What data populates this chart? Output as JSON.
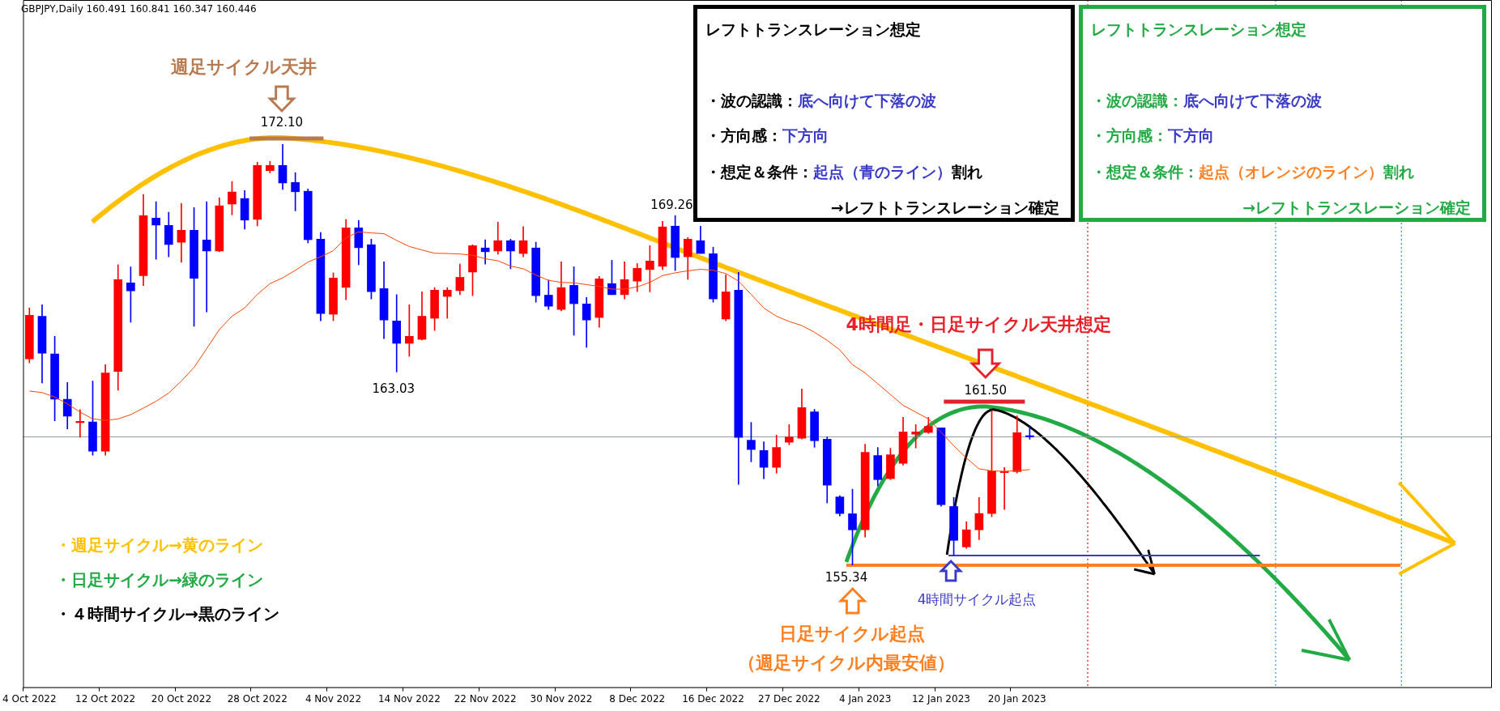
{
  "chart_data": {
    "type": "candlestick",
    "title": "GBPJPY,Daily  160.491 160.841 160.347 160.446",
    "categories": [
      "4 Oct 2022",
      null,
      null,
      null,
      null,
      null,
      "12 Oct 2022",
      null,
      null,
      null,
      null,
      null,
      "20 Oct 2022",
      null,
      null,
      null,
      null,
      null,
      "28 Oct 2022",
      null,
      null,
      null,
      null,
      null,
      "4 Nov 2022",
      null,
      null,
      null,
      null,
      null,
      "14 Nov 2022",
      null,
      null,
      null,
      null,
      null,
      "22 Nov 2022",
      null,
      null,
      null,
      null,
      null,
      "30 Nov 2022",
      null,
      null,
      null,
      null,
      null,
      "8 Dec 2022",
      null,
      null,
      null,
      null,
      null,
      "16 Dec 2022",
      null,
      null,
      null,
      null,
      null,
      "27 Dec 2022",
      null,
      null,
      null,
      null,
      null,
      "4 Jan 2023",
      null,
      null,
      null,
      null,
      null,
      "12 Jan 2023",
      null,
      null,
      null,
      null,
      null,
      "20 Jan 2023",
      null,
      null,
      null,
      null,
      null,
      null,
      null,
      null,
      null,
      null,
      null,
      null,
      null,
      null,
      null,
      null,
      null,
      null,
      null,
      null,
      null,
      null,
      null,
      null,
      null,
      null,
      null,
      null,
      null,
      null,
      null,
      null,
      null,
      null,
      null,
      null,
      null
    ],
    "ohlc": [
      [
        163.55,
        165.58,
        163.39,
        165.29
      ],
      [
        165.25,
        165.71,
        162.59,
        163.78
      ],
      [
        163.75,
        164.45,
        161.08,
        161.95
      ],
      [
        161.94,
        162.61,
        160.76,
        161.27
      ],
      [
        161.01,
        161.53,
        160.43,
        161.06
      ],
      [
        161.04,
        162.67,
        159.71,
        159.87
      ],
      [
        159.87,
        163.32,
        159.71,
        162.99
      ],
      [
        163.05,
        167.3,
        162.3,
        166.71
      ],
      [
        166.58,
        167.22,
        165.01,
        166.26
      ],
      [
        166.87,
        170.1,
        166.47,
        169.26
      ],
      [
        169.16,
        169.81,
        167.52,
        168.88
      ],
      [
        168.87,
        169.39,
        167.62,
        168.11
      ],
      [
        168.2,
        169.74,
        167.4,
        168.68
      ],
      [
        168.68,
        169.58,
        164.85,
        166.76
      ],
      [
        168.29,
        169.81,
        165.42,
        167.85
      ],
      [
        167.85,
        169.97,
        167.82,
        169.65
      ],
      [
        169.72,
        170.62,
        169.29,
        170.2
      ],
      [
        169.94,
        170.26,
        168.72,
        169.08
      ],
      [
        169.11,
        171.39,
        168.85,
        171.26
      ],
      [
        171.05,
        171.42,
        170.96,
        171.26
      ],
      [
        171.26,
        172.1,
        170.3,
        170.56
      ],
      [
        170.58,
        170.97,
        169.45,
        170.21
      ],
      [
        170.23,
        170.32,
        168.17,
        168.3
      ],
      [
        168.32,
        168.59,
        165.07,
        165.36
      ],
      [
        165.33,
        166.98,
        165.07,
        166.77
      ],
      [
        166.4,
        169.1,
        165.91,
        168.77
      ],
      [
        168.77,
        169.07,
        167.3,
        167.98
      ],
      [
        168.1,
        168.32,
        165.94,
        166.23
      ],
      [
        166.35,
        167.42,
        164.36,
        165.1
      ],
      [
        165.06,
        166.11,
        163.03,
        164.17
      ],
      [
        164.17,
        165.71,
        163.65,
        164.45
      ],
      [
        164.33,
        166.22,
        164.3,
        165.25
      ],
      [
        165.17,
        166.39,
        164.68,
        166.29
      ],
      [
        166.04,
        166.39,
        165.17,
        166.29
      ],
      [
        166.27,
        167.33,
        166.11,
        166.8
      ],
      [
        167.01,
        168.1,
        166.07,
        168.06
      ],
      [
        167.97,
        168.3,
        167.33,
        167.82
      ],
      [
        167.85,
        169.0,
        167.72,
        168.26
      ],
      [
        168.26,
        168.32,
        167.14,
        167.85
      ],
      [
        167.75,
        168.82,
        167.62,
        168.26
      ],
      [
        167.97,
        168.2,
        165.81,
        166.07
      ],
      [
        166.09,
        166.69,
        165.52,
        165.65
      ],
      [
        165.52,
        167.42,
        165.46,
        166.39
      ],
      [
        166.48,
        167.22,
        164.49,
        165.75
      ],
      [
        165.74,
        166.0,
        164.01,
        165.1
      ],
      [
        165.2,
        166.84,
        164.81,
        166.74
      ],
      [
        166.55,
        167.48,
        166.11,
        166.11
      ],
      [
        166.11,
        167.42,
        165.94,
        166.71
      ],
      [
        166.65,
        167.35,
        166.23,
        167.16
      ],
      [
        167.11,
        168.06,
        166.22,
        167.45
      ],
      [
        167.24,
        169.03,
        167.11,
        168.81
      ],
      [
        168.84,
        169.26,
        167.07,
        167.59
      ],
      [
        167.62,
        168.39,
        166.72,
        168.32
      ],
      [
        168.26,
        168.84,
        167.75,
        167.75
      ],
      [
        167.74,
        168.0,
        165.81,
        165.94
      ],
      [
        165.14,
        166.9,
        165.07,
        166.22
      ],
      [
        166.29,
        167.0,
        158.55,
        160.42
      ],
      [
        160.31,
        161.02,
        159.45,
        159.94
      ],
      [
        159.9,
        160.25,
        158.78,
        159.23
      ],
      [
        159.23,
        160.51,
        159.0,
        160.02
      ],
      [
        160.23,
        160.93,
        160.13,
        160.44
      ],
      [
        160.39,
        162.35,
        160.36,
        161.61
      ],
      [
        161.44,
        161.54,
        160.03,
        160.29
      ],
      [
        160.35,
        160.44,
        157.81,
        158.52
      ],
      [
        158.05,
        158.1,
        157.29,
        157.39
      ],
      [
        157.38,
        158.36,
        155.34,
        156.74
      ],
      [
        156.74,
        160.15,
        156.45,
        159.83
      ],
      [
        159.7,
        160.02,
        158.49,
        158.74
      ],
      [
        158.78,
        159.99,
        158.74,
        159.73
      ],
      [
        159.39,
        161.22,
        159.32,
        160.64
      ],
      [
        160.55,
        160.93,
        160.0,
        160.64
      ],
      [
        160.62,
        161.22,
        160.58,
        160.86
      ],
      [
        160.8,
        160.8,
        157.68,
        157.74
      ],
      [
        157.67,
        158.03,
        155.73,
        156.32
      ],
      [
        156.06,
        157.06,
        156.0,
        156.74
      ],
      [
        156.74,
        158.03,
        156.35,
        157.39
      ],
      [
        157.39,
        161.5,
        157.26,
        159.09
      ],
      [
        159.02,
        159.22,
        157.55,
        159.06
      ],
      [
        159.06,
        161.28,
        159.0,
        160.61
      ],
      [
        160.491,
        160.841,
        160.347,
        160.446
      ],
      null,
      null,
      null,
      null,
      null,
      null,
      null,
      null,
      null,
      null,
      null,
      null,
      null,
      null,
      null,
      null,
      null,
      null,
      null,
      null,
      null,
      null,
      null,
      null,
      null,
      null,
      null,
      null,
      null,
      null,
      null,
      null,
      null,
      null,
      null,
      null
    ],
    "colors": [
      "#ff0000",
      "#0000ff",
      "#0000ff",
      "#0000ff",
      "#ff0000",
      "#0000ff",
      "#ff0000",
      "#ff0000",
      "#0000ff",
      "#ff0000",
      "#0000ff",
      "#0000ff",
      "#ff0000",
      "#0000ff",
      "#0000ff",
      "#ff0000",
      "#ff0000",
      "#0000ff",
      "#ff0000",
      "#ff0000",
      "#0000ff",
      "#0000ff",
      "#0000ff",
      "#0000ff",
      "#ff0000",
      "#ff0000",
      "#0000ff",
      "#0000ff",
      "#0000ff",
      "#0000ff",
      "#ff0000",
      "#ff0000",
      "#ff0000",
      "#ff0000",
      "#ff0000",
      "#ff0000",
      "#0000ff",
      "#ff0000",
      "#0000ff",
      "#ff0000",
      "#0000ff",
      "#0000ff",
      "#ff0000",
      "#0000ff",
      "#0000ff",
      "#ff0000",
      "#0000ff",
      "#ff0000",
      "#ff0000",
      "#ff0000",
      "#ff0000",
      "#0000ff",
      "#ff0000",
      "#0000ff",
      "#0000ff",
      "#ff0000",
      "#0000ff",
      "#0000ff",
      "#0000ff",
      "#ff0000",
      "#ff0000",
      "#ff0000",
      "#0000ff",
      "#0000ff",
      "#0000ff",
      "#0000ff",
      "#ff0000",
      "#0000ff",
      "#ff0000",
      "#ff0000",
      "#ff0000",
      "#ff0000",
      "#0000ff",
      "#0000ff",
      "#ff0000",
      "#ff0000",
      "#ff0000",
      "#ff0000",
      "#ff0000",
      "#0000ff",
      null,
      null,
      null,
      null,
      null,
      null,
      null,
      null,
      null,
      null,
      null,
      null,
      null,
      null,
      null,
      null,
      null,
      null,
      null,
      null,
      null,
      null,
      null,
      null,
      null,
      null,
      null,
      null,
      null,
      null,
      null,
      null,
      null,
      null,
      null,
      null
    ],
    "series": [
      {
        "type": "line",
        "color": "#ff4500",
        "values": [
          162.27,
          162.21,
          162.03,
          161.76,
          161.43,
          161.16,
          161.1,
          161.16,
          161.33,
          161.59,
          161.86,
          162.19,
          162.67,
          163.21,
          163.96,
          164.72,
          165.25,
          165.58,
          166.12,
          166.55,
          166.78,
          167.08,
          167.41,
          167.62,
          167.86,
          168.38,
          168.61,
          168.57,
          168.54,
          168.27,
          168.03,
          167.89,
          167.76,
          167.75,
          167.73,
          167.68,
          167.54,
          167.46,
          167.25,
          167.14,
          166.89,
          166.68,
          166.6,
          166.58,
          166.51,
          166.44,
          166.33,
          166.33,
          166.42,
          166.6,
          166.87,
          166.98,
          167.06,
          167.12,
          167.08,
          166.95,
          166.65,
          166.12,
          165.58,
          165.25,
          165.04,
          164.88,
          164.61,
          164.29,
          163.91,
          163.32,
          162.99,
          162.56,
          162.13,
          161.7,
          161.43,
          161.16,
          160.63,
          160.09,
          159.6,
          159.17,
          159.09,
          159.07,
          159.1,
          159.14,
          null,
          null,
          null,
          null,
          null,
          null,
          null,
          null,
          null,
          null,
          null,
          null,
          null,
          null,
          null,
          null,
          null,
          null,
          null,
          null,
          null,
          null,
          null,
          null,
          null,
          null,
          null,
          null,
          null,
          null,
          null,
          null,
          null,
          null,
          null,
          null
        ]
      }
    ],
    "ylim": [
      150.47,
      177.85
    ],
    "tick_labels": "x",
    "ref_lines": [
      {
        "axis": "y",
        "value": 160.446,
        "color": "#8c9aa8",
        "line_style": "solid"
      }
    ],
    "annotations": [
      "週足サイクル天井",
      {
        "text": "172.10",
        "y": 172.1
      },
      {
        "text": "169.26",
        "y": 169.26
      },
      {
        "text": "163.03",
        "y": 163.03
      },
      "4時間足・日足サイクル天井想定",
      "161.50",
      "155.34",
      "4時間サイクル起点",
      "日足サイクル起点",
      "（週足サイクル内最安値）",
      "・週足サイクル→黄のライン",
      "・日足サイクル→緑のライン",
      "・４時間サイクル→黒のライン",
      "レフトトランスレーション想定",
      "・波の認識：",
      "底へ向けて下落の波",
      "・方向感：",
      "下方向",
      "・想定＆条件：",
      "起点（青のライン）",
      "割れ",
      "→レフトトランスレーション確定",
      "レフトトランスレーション想定",
      "・波の認識：",
      "底へ向けて下落の波",
      "・方向感：",
      "下方向",
      "・想定＆条件：",
      "起点（オレンジのライン）",
      "割れ",
      "→レフトトランスレーション確定"
    ]
  }
}
